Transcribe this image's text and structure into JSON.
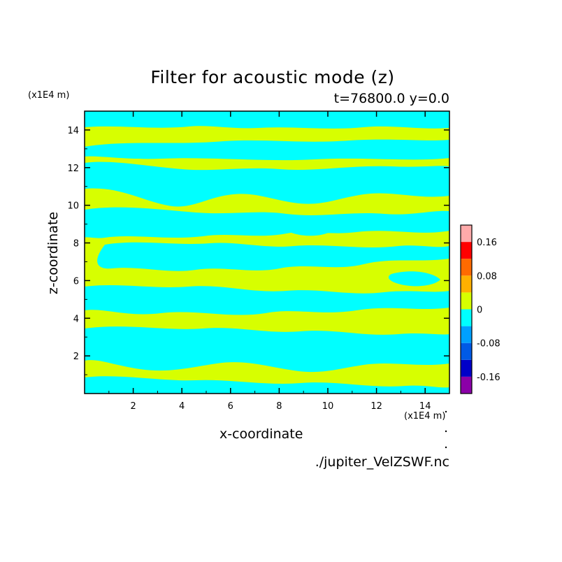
{
  "chart_data": {
    "type": "heatmap",
    "title": "Filter for acoustic mode (z)",
    "subtitle": "t=76800.0 y=0.0",
    "xlabel": "x-coordinate",
    "ylabel": "z-coordinate",
    "x_unit": "(x1E4 m)",
    "y_unit": "(x1E4 m)",
    "xlim": [
      0,
      15
    ],
    "ylim": [
      0,
      15
    ],
    "x_ticks": [
      "2",
      "4",
      "6",
      "8",
      "10",
      "12",
      "14"
    ],
    "y_ticks": [
      "2",
      "4",
      "6",
      "8",
      "10",
      "12",
      "14"
    ],
    "colorbar": {
      "labels": [
        "0.16",
        "0.08",
        "0",
        "-0.08",
        "-0.16"
      ],
      "levels": [
        -0.2,
        -0.16,
        -0.12,
        -0.08,
        -0.04,
        0,
        0.04,
        0.08,
        0.12,
        0.16,
        0.2
      ],
      "colors": [
        "#8b00a8",
        "#0000c8",
        "#005ae6",
        "#00a0ff",
        "#00ffff",
        "#d7ff00",
        "#ffb000",
        "#ff6a00",
        "#ff0000",
        "#ffaaaa"
      ]
    },
    "field_colors": {
      "negative": "#00ffff",
      "positive": "#d7ff00"
    },
    "source": "./jupiter_VelZSWF.nc"
  }
}
